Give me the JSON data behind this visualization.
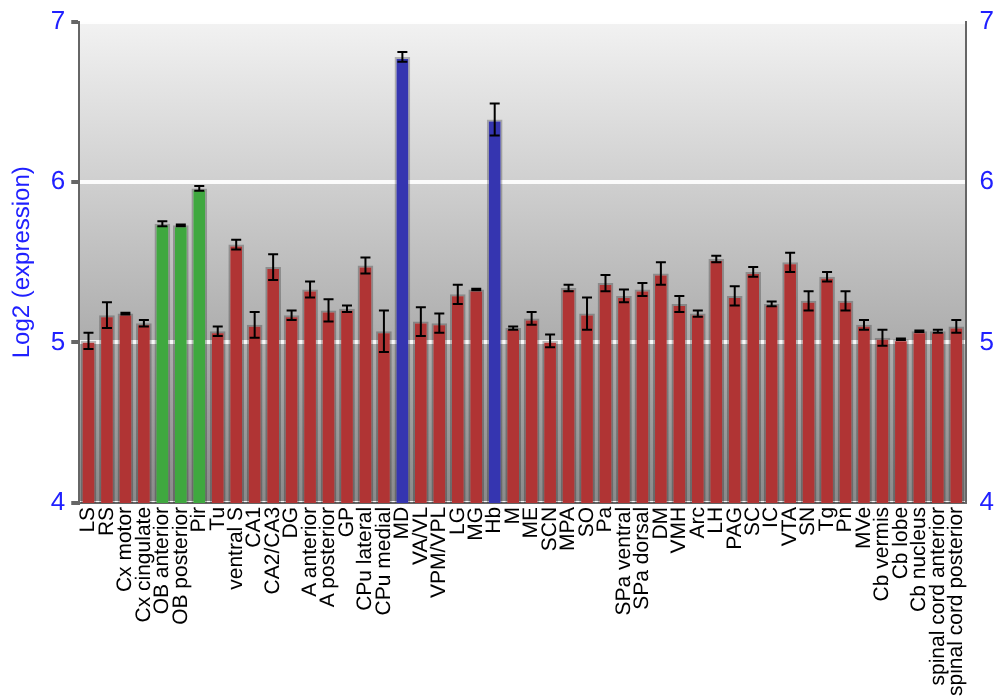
{
  "chart_data": {
    "type": "bar",
    "ylabel": "Log2 (expression)",
    "categories": [
      "LS",
      "RS",
      "Cx motor",
      "Cx cingulate",
      "OB anterior",
      "OB posterior",
      "Pir",
      "Tu",
      "ventral S",
      "CA1",
      "CA2/CA3",
      "DG",
      "A anterior",
      "A posterior",
      "GP",
      "CPu lateral",
      "CPu medial",
      "MD",
      "VA/VL",
      "VPM/VPL",
      "LG",
      "MG",
      "Hb",
      "M",
      "ME",
      "SCN",
      "MPA",
      "SO",
      "Pa",
      "SPa ventral",
      "SPa dorsal",
      "DM",
      "VMH",
      "Arc",
      "LH",
      "PAG",
      "SC",
      "IC",
      "VTA",
      "SN",
      "Tg",
      "Pn",
      "MVe",
      "Cb vermis",
      "Cb lobe",
      "Cb nucleus",
      "spinal cord anterior",
      "spinal cord posterior"
    ],
    "values": [
      5.01,
      5.17,
      5.18,
      5.12,
      5.74,
      5.73,
      5.96,
      5.07,
      5.61,
      5.11,
      5.47,
      5.17,
      5.33,
      5.2,
      5.21,
      5.48,
      5.07,
      6.78,
      5.13,
      5.12,
      5.3,
      5.33,
      6.39,
      5.09,
      5.15,
      5.01,
      5.34,
      5.18,
      5.37,
      5.29,
      5.33,
      5.43,
      5.24,
      5.18,
      5.52,
      5.29,
      5.44,
      5.24,
      5.5,
      5.26,
      5.41,
      5.26,
      5.11,
      5.03,
      5.02,
      5.07,
      5.07,
      5.1
    ],
    "errors": [
      0.05,
      0.08,
      0.005,
      0.02,
      0.015,
      0.005,
      0.015,
      0.03,
      0.03,
      0.08,
      0.08,
      0.03,
      0.05,
      0.07,
      0.02,
      0.05,
      0.13,
      0.03,
      0.09,
      0.06,
      0.06,
      0.005,
      0.1,
      0.01,
      0.04,
      0.04,
      0.02,
      0.1,
      0.05,
      0.04,
      0.04,
      0.07,
      0.05,
      0.02,
      0.02,
      0.06,
      0.03,
      0.015,
      0.06,
      0.06,
      0.03,
      0.06,
      0.03,
      0.05,
      0.005,
      0.005,
      0.01,
      0.04
    ],
    "colors": [
      "#b03434",
      "#b03434",
      "#b03434",
      "#b03434",
      "#3fa83f",
      "#3fa83f",
      "#3fa83f",
      "#b03434",
      "#b03434",
      "#b03434",
      "#b03434",
      "#b03434",
      "#b03434",
      "#b03434",
      "#b03434",
      "#b03434",
      "#b03434",
      "#3535b0",
      "#b03434",
      "#b03434",
      "#b03434",
      "#b03434",
      "#3535b0",
      "#b03434",
      "#b03434",
      "#b03434",
      "#b03434",
      "#b03434",
      "#b03434",
      "#b03434",
      "#b03434",
      "#b03434",
      "#b03434",
      "#b03434",
      "#b03434",
      "#b03434",
      "#b03434",
      "#b03434",
      "#b03434",
      "#b03434",
      "#b03434",
      "#b03434",
      "#b03434",
      "#b03434",
      "#b03434",
      "#b03434",
      "#b03434",
      "#b03434"
    ],
    "ylim": [
      4,
      7
    ],
    "yticks": [
      4,
      5,
      6,
      7
    ],
    "y2lim": [
      4,
      7
    ],
    "y2ticks": [
      4,
      5,
      6,
      7
    ],
    "grid": "y",
    "legend": false
  }
}
